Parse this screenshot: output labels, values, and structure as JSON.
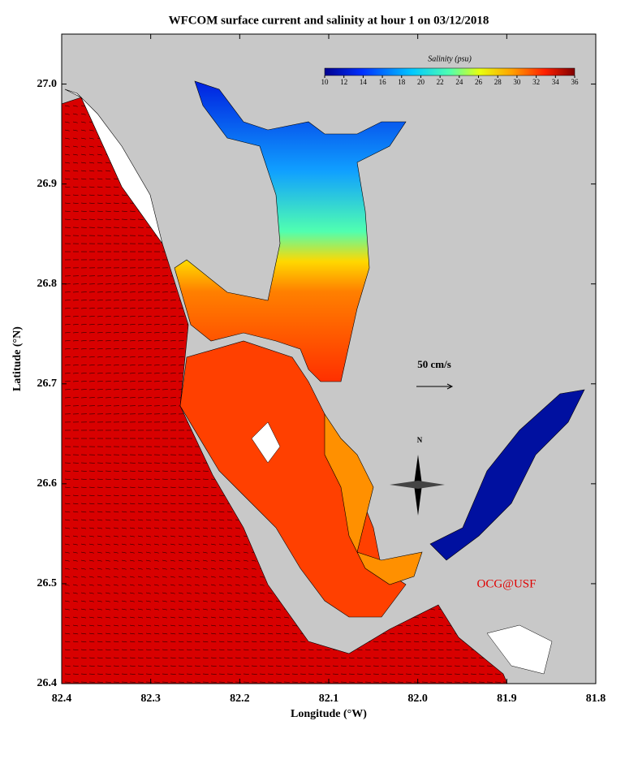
{
  "chart_data": {
    "type": "map",
    "title": "WFCOM surface current and salinity at hour 1 on 03/12/2018",
    "xlabel": "Longitude (°W)",
    "ylabel": "Latitude (°N)",
    "xlim": [
      82.4,
      81.8
    ],
    "xticks": [
      82.4,
      82.3,
      82.2,
      82.1,
      {
        "value": 82.0,
        "label": "82.0"
      },
      81.9,
      81.8
    ],
    "ylim": [
      26.4,
      27.05
    ],
    "yticks": [
      26.4,
      26.5,
      26.6,
      26.7,
      26.8,
      26.9,
      {
        "value": 27.0,
        "label": "27.0"
      }
    ],
    "colorbar": {
      "label": "Salinity (psu)",
      "lim": [
        10,
        36
      ],
      "ticks": [
        10,
        12,
        14,
        16,
        18,
        20,
        22,
        24,
        26,
        28,
        30,
        32,
        34,
        36
      ]
    },
    "annotations": {
      "scale": "50 cm/s",
      "north": "N",
      "credit": "OCG@USF"
    }
  }
}
